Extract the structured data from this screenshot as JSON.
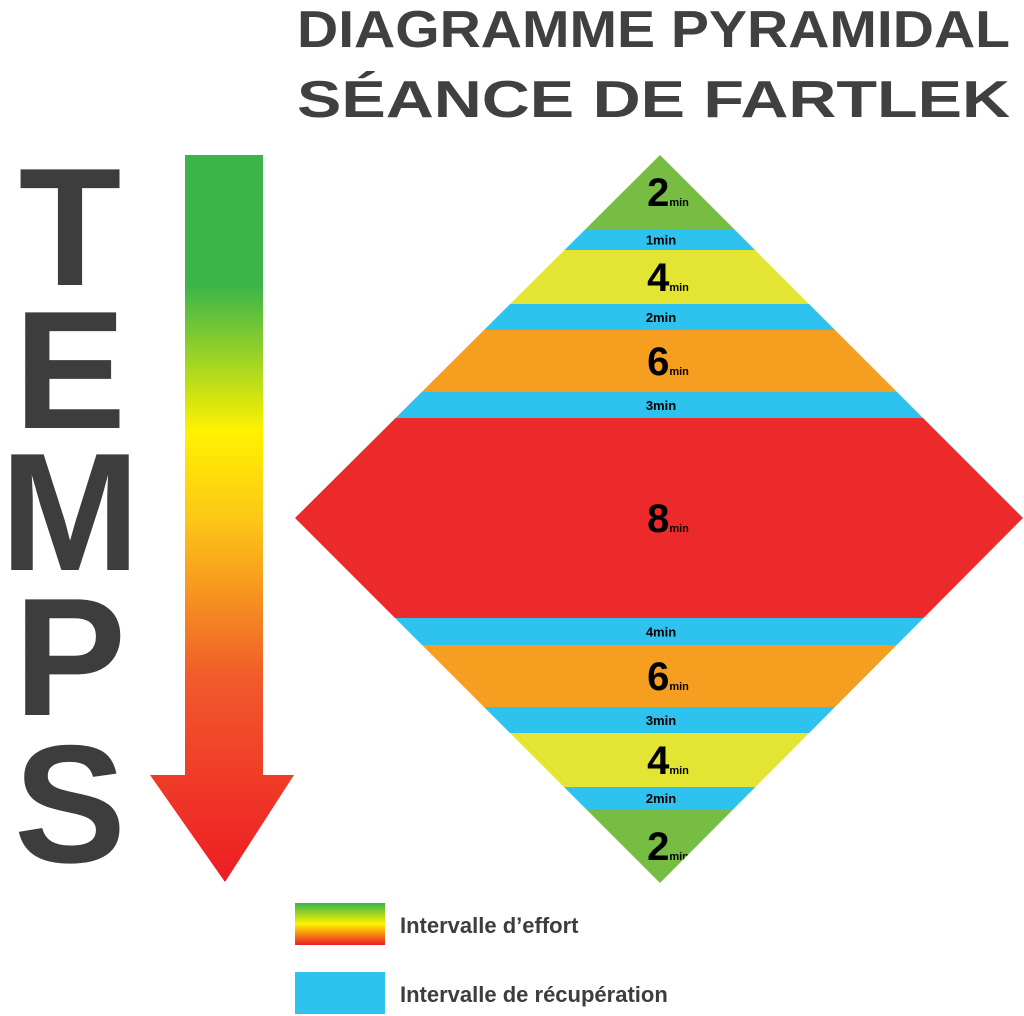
{
  "title": [
    "DIAGRAMME PYRAMIDAL",
    "SÉANCE DE FARTLEK"
  ],
  "side_label": [
    "T",
    "E",
    "M",
    "P",
    "S"
  ],
  "bands": [
    {
      "color": "#77bc43",
      "label": "2",
      "unit": "min"
    },
    {
      "color": "#2ec3ef",
      "label": "1min"
    },
    {
      "color": "#e4e433",
      "label": "4",
      "unit": "min"
    },
    {
      "color": "#2ec3ef",
      "label": "2min"
    },
    {
      "color": "#f59e20",
      "label": "6",
      "unit": "min"
    },
    {
      "color": "#2ec3ef",
      "label": "3min"
    },
    {
      "color": "#ec2a2b",
      "label": "8",
      "unit": "min"
    },
    {
      "color": "#2ec3ef",
      "label": "4min"
    },
    {
      "color": "#f59e20",
      "label": "6",
      "unit": "min"
    },
    {
      "color": "#2ec3ef",
      "label": "3min"
    },
    {
      "color": "#e4e433",
      "label": "4",
      "unit": "min"
    },
    {
      "color": "#2ec3ef",
      "label": "2min"
    },
    {
      "color": "#77bc43",
      "label": "2",
      "unit": "min"
    }
  ],
  "legend": [
    {
      "label": "Intervalle d’effort",
      "colors": [
        "#3bb54a",
        "#fff200",
        "#ed1c24"
      ]
    },
    {
      "label": "Intervalle de récupération",
      "color": "#2ec3ef"
    }
  ]
}
